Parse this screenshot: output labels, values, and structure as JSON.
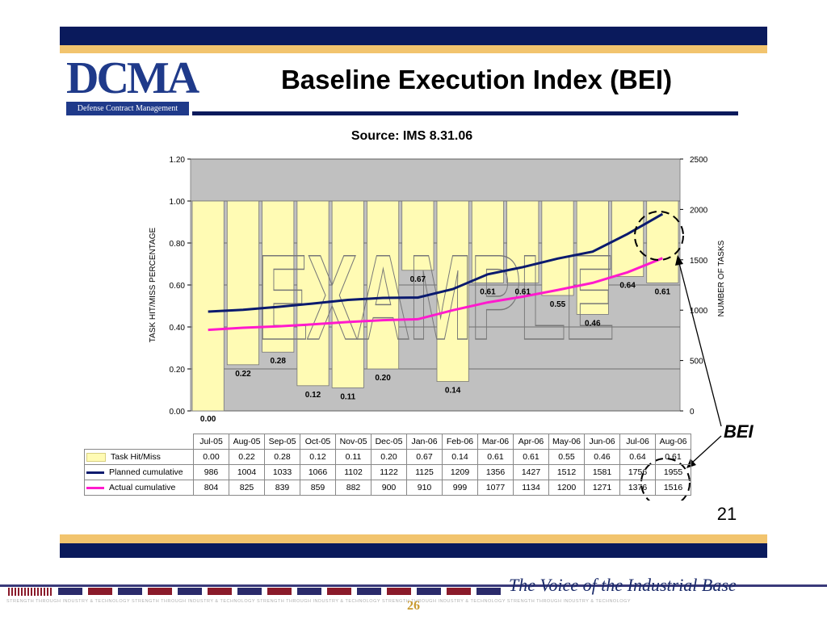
{
  "header": {
    "logo_text": "DCMA",
    "logo_tagline": "Defense Contract Management Agency",
    "title": "Baseline Execution Index (BEI)"
  },
  "chart_data": {
    "type": "bar",
    "title": "Source: IMS 8.31.06",
    "watermark": "EXAMPLE",
    "callout": "BEI",
    "categories": [
      "Jul-05",
      "Aug-05",
      "Sep-05",
      "Oct-05",
      "Nov-05",
      "Dec-05",
      "Jan-06",
      "Feb-06",
      "Mar-06",
      "Apr-06",
      "May-06",
      "Jun-06",
      "Jul-06",
      "Aug-06"
    ],
    "bar_series": {
      "name": "Task Hit/Miss",
      "values": [
        0.0,
        0.22,
        0.28,
        0.12,
        0.11,
        0.2,
        0.67,
        0.14,
        0.61,
        0.61,
        0.55,
        0.46,
        0.64,
        0.61
      ],
      "color": "#fffbb4",
      "labels": [
        "0.00",
        "0.22",
        "0.28",
        "0.12",
        "0.11",
        "0.20",
        "0.67",
        "0.14",
        "0.61",
        "0.61",
        "0.55",
        "0.46",
        "0.64",
        "0.61"
      ]
    },
    "line_series": [
      {
        "name": "Planned cumulative",
        "values": [
          986,
          1004,
          1033,
          1066,
          1102,
          1122,
          1125,
          1209,
          1356,
          1427,
          1512,
          1581,
          1756,
          1955
        ],
        "color": "#0a1a6e"
      },
      {
        "name": "Actual cumulative",
        "values": [
          804,
          825,
          839,
          859,
          882,
          900,
          910,
          999,
          1077,
          1134,
          1200,
          1271,
          1376,
          1516
        ],
        "color": "#ff1acd"
      }
    ],
    "y_left": {
      "label": "TASK HIT/MISS PERCENTAGE",
      "min": 0,
      "max": 1.2,
      "ticks": [
        "0.00",
        "0.20",
        "0.40",
        "0.60",
        "0.80",
        "1.00",
        "1.20"
      ]
    },
    "y_right": {
      "label": "NUMBER OF TASKS",
      "min": 0,
      "max": 2500,
      "ticks": [
        "0",
        "500",
        "1000",
        "1500",
        "2000",
        "2500"
      ]
    },
    "grid": true
  },
  "slide_number": "21",
  "footer": {
    "tagline": "The Voice of the Industrial Base",
    "small_text": "STRENGTH THROUGH INDUSTRY & TECHNOLOGY   STRENGTH THROUGH INDUSTRY & TECHNOLOGY   STRENGTH THROUGH INDUSTRY & TECHNOLOGY   STRENGTH THROUGH INDUSTRY & TECHNOLOGY   STRENGTH THROUGH INDUSTRY & TECHNOLOGY",
    "page": "26"
  }
}
